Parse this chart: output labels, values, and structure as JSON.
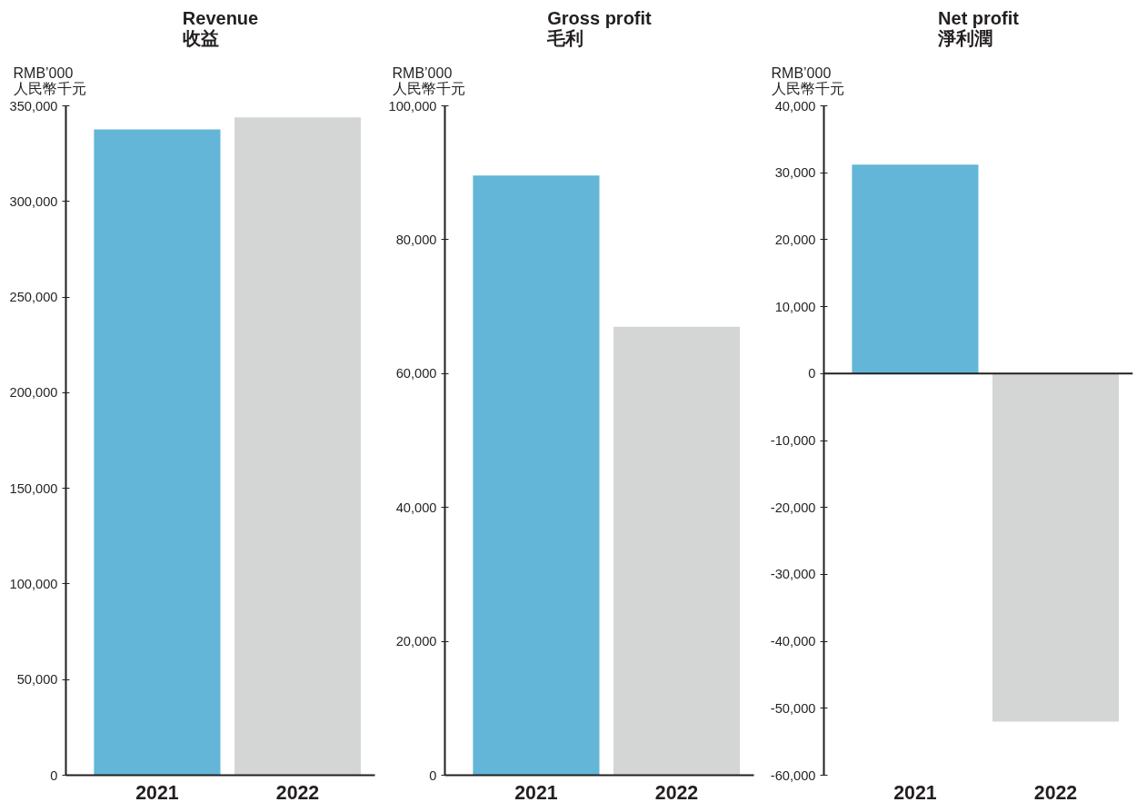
{
  "chart_data": [
    {
      "type": "bar",
      "title": "Revenue\n收益",
      "ylabel": "RMB’000\n人民幣千元",
      "categories": [
        "2021",
        "2022"
      ],
      "values": [
        337600,
        344000
      ],
      "colors": [
        "#63b6d7",
        "#d4d6d6"
      ],
      "ylim": [
        0,
        350000
      ],
      "yticks": [
        0,
        {
          "value": 50000,
          "label": "50,000"
        },
        {
          "value": 100000,
          "label": "100,000"
        },
        {
          "value": 150000,
          "label": "150,000"
        },
        {
          "value": 200000,
          "label": "200,000"
        },
        {
          "value": 250000,
          "label": "250,000"
        },
        {
          "value": 300000,
          "label": "300,000"
        },
        {
          "value": 350000,
          "label": "350,000"
        }
      ]
    },
    {
      "type": "bar",
      "title": "Gross profit\n毛利",
      "ylabel": "RMB’000\n人民幣千元",
      "categories": [
        "2021",
        "2022"
      ],
      "values": [
        89600,
        67000
      ],
      "colors": [
        "#63b6d7",
        "#d4d6d6"
      ],
      "ylim": [
        0,
        100000
      ],
      "yticks": [
        0,
        {
          "value": 20000,
          "label": "20,000"
        },
        {
          "value": 40000,
          "label": "40,000"
        },
        {
          "value": 60000,
          "label": "60,000"
        },
        {
          "value": 80000,
          "label": "80,000"
        },
        {
          "value": 100000,
          "label": "100,000"
        }
      ]
    },
    {
      "type": "bar",
      "title": "Net profit\n淨利潤",
      "ylabel": "RMB’000\n人民幣千元",
      "categories": [
        "2021",
        "2022"
      ],
      "values": [
        31200,
        -52000
      ],
      "colors": [
        "#63b6d7",
        "#d4d6d6"
      ],
      "ylim": [
        -60000,
        40000
      ],
      "yticks": [
        {
          "value": -60000,
          "label": "-60,000"
        },
        {
          "value": -50000,
          "label": "-50,000"
        },
        {
          "value": -40000,
          "label": "-40,000"
        },
        {
          "value": -30000,
          "label": "-30,000"
        },
        {
          "value": -20000,
          "label": "-20,000"
        },
        {
          "value": -10000,
          "label": "-10,000"
        },
        0,
        {
          "value": 10000,
          "label": "10,000"
        },
        {
          "value": 20000,
          "label": "20,000"
        },
        {
          "value": 30000,
          "label": "30,000"
        },
        {
          "value": 40000,
          "label": "40,000"
        }
      ]
    }
  ]
}
